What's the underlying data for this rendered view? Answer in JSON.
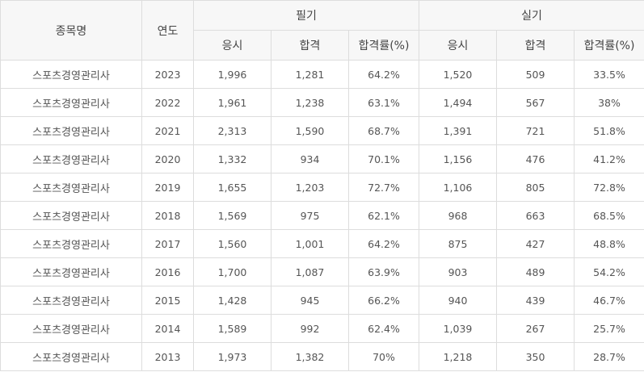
{
  "header": {
    "item_name": "종목명",
    "year": "연도",
    "written": "필기",
    "practical": "실기",
    "sub": {
      "applicants": "응시",
      "passed": "합격",
      "pass_rate": "합격률(%)"
    }
  },
  "rows": [
    {
      "name": "스포츠경영관리사",
      "year": "2023",
      "w_app": "1,996",
      "w_pass": "1,281",
      "w_rate": "64.2%",
      "p_app": "1,520",
      "p_pass": "509",
      "p_rate": "33.5%"
    },
    {
      "name": "스포츠경영관리사",
      "year": "2022",
      "w_app": "1,961",
      "w_pass": "1,238",
      "w_rate": "63.1%",
      "p_app": "1,494",
      "p_pass": "567",
      "p_rate": "38%"
    },
    {
      "name": "스포츠경영관리사",
      "year": "2021",
      "w_app": "2,313",
      "w_pass": "1,590",
      "w_rate": "68.7%",
      "p_app": "1,391",
      "p_pass": "721",
      "p_rate": "51.8%"
    },
    {
      "name": "스포츠경영관리사",
      "year": "2020",
      "w_app": "1,332",
      "w_pass": "934",
      "w_rate": "70.1%",
      "p_app": "1,156",
      "p_pass": "476",
      "p_rate": "41.2%"
    },
    {
      "name": "스포츠경영관리사",
      "year": "2019",
      "w_app": "1,655",
      "w_pass": "1,203",
      "w_rate": "72.7%",
      "p_app": "1,106",
      "p_pass": "805",
      "p_rate": "72.8%"
    },
    {
      "name": "스포츠경영관리사",
      "year": "2018",
      "w_app": "1,569",
      "w_pass": "975",
      "w_rate": "62.1%",
      "p_app": "968",
      "p_pass": "663",
      "p_rate": "68.5%"
    },
    {
      "name": "스포츠경영관리사",
      "year": "2017",
      "w_app": "1,560",
      "w_pass": "1,001",
      "w_rate": "64.2%",
      "p_app": "875",
      "p_pass": "427",
      "p_rate": "48.8%"
    },
    {
      "name": "스포츠경영관리사",
      "year": "2016",
      "w_app": "1,700",
      "w_pass": "1,087",
      "w_rate": "63.9%",
      "p_app": "903",
      "p_pass": "489",
      "p_rate": "54.2%"
    },
    {
      "name": "스포츠경영관리사",
      "year": "2015",
      "w_app": "1,428",
      "w_pass": "945",
      "w_rate": "66.2%",
      "p_app": "940",
      "p_pass": "439",
      "p_rate": "46.7%"
    },
    {
      "name": "스포츠경영관리사",
      "year": "2014",
      "w_app": "1,589",
      "w_pass": "992",
      "w_rate": "62.4%",
      "p_app": "1,039",
      "p_pass": "267",
      "p_rate": "25.7%"
    },
    {
      "name": "스포츠경영관리사",
      "year": "2013",
      "w_app": "1,973",
      "w_pass": "1,382",
      "w_rate": "70%",
      "p_app": "1,218",
      "p_pass": "350",
      "p_rate": "28.7%"
    }
  ]
}
